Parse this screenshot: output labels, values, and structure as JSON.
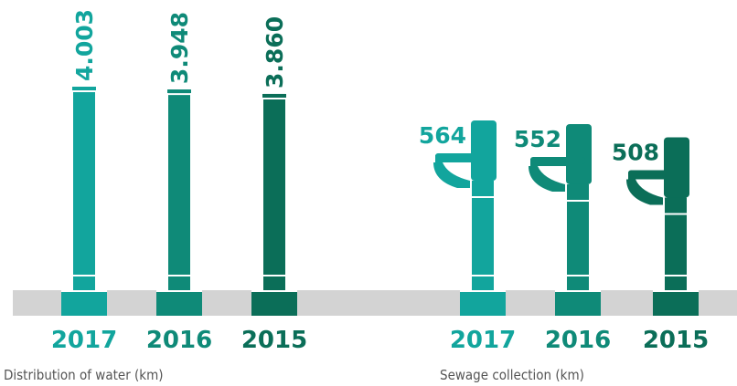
{
  "chart_data": [
    {
      "type": "pipe",
      "x_label": "Distribution of water (km)",
      "categories": [
        "2017",
        "2016",
        "2015"
      ],
      "series": [
        {
          "values": [
            4003,
            3948,
            3860
          ],
          "value_labels": [
            "4.003",
            "3.948",
            "3.860"
          ],
          "colors": [
            "#12a59d",
            "#0f8a78",
            "#0b6e58"
          ]
        }
      ]
    },
    {
      "type": "toilet",
      "x_label": "Sewage collection (km)",
      "categories": [
        "2017",
        "2016",
        "2015"
      ],
      "series": [
        {
          "values": [
            564,
            552,
            508
          ],
          "colors": [
            "#12a59d",
            "#0f8a78",
            "#0b6e58"
          ]
        }
      ]
    }
  ]
}
